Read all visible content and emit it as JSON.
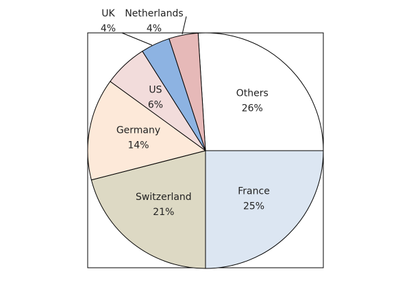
{
  "chart_data": {
    "type": "pie",
    "categories": [
      "Others",
      "France",
      "Switzerland",
      "Germany",
      "US",
      "UK",
      "Netherlands"
    ],
    "values": [
      26,
      25,
      21,
      14,
      6,
      4,
      4
    ],
    "value_labels": [
      "26%",
      "25%",
      "21%",
      "14%",
      "6%",
      "4%",
      "4%"
    ],
    "colors": [
      "#ffffff",
      "#dce6f2",
      "#ddd9c4",
      "#fde9d9",
      "#f2dcdb",
      "#8db3e2",
      "#e6b9b8"
    ]
  }
}
